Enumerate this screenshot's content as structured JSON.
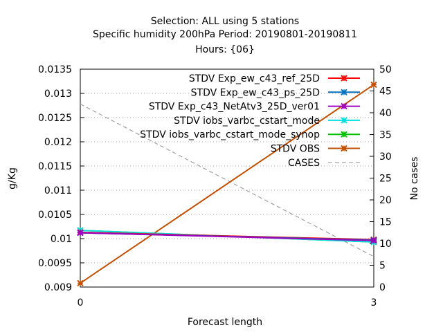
{
  "chart_data": {
    "type": "line",
    "title_lines": [
      "Selection: ALL using     5 stations",
      "Specific humidity 200hPa   Period: 20190801-20190811",
      "Hours: {06}"
    ],
    "xlabel": "Forecast length",
    "ylabel": "g/Kg",
    "y2label": "No cases",
    "x": [
      0,
      3
    ],
    "xlim": [
      0,
      3
    ],
    "ylim": [
      0.009,
      0.0135
    ],
    "y2lim": [
      0,
      50
    ],
    "xticks": [
      "0",
      "3"
    ],
    "yticks": [
      "0.009",
      "0.0095",
      "0.01",
      "0.0105",
      "0.011",
      "0.0115",
      "0.012",
      "0.0125",
      "0.013",
      "0.0135"
    ],
    "y2ticks": [
      "0",
      "5",
      "10",
      "15",
      "20",
      "25",
      "30",
      "35",
      "40",
      "45",
      "50"
    ],
    "grid": true,
    "legend_position": "top-right",
    "series": [
      {
        "name": "STDV Exp_ew_c43_ref_25D",
        "color": "#ff0000",
        "axis": "y",
        "marker": "x",
        "values": [
          0.01013,
          0.00998
        ]
      },
      {
        "name": "STDV Exp_ew_c43_ps_25D",
        "color": "#0072bd",
        "axis": "y",
        "marker": "x",
        "values": [
          0.01012,
          0.00997
        ]
      },
      {
        "name": "STDV Exp_c43_NetAtv3_25D_ver01",
        "color": "#a000c0",
        "axis": "y",
        "marker": "x",
        "values": [
          0.01012,
          0.00996
        ]
      },
      {
        "name": "STDV iobs_varbc_cstart_mode",
        "color": "#00e0e0",
        "axis": "y",
        "marker": "x",
        "values": [
          0.01017,
          0.00993
        ]
      },
      {
        "name": "STDV iobs_varbc_cstart_mode_synop",
        "color": "#00c000",
        "axis": "y",
        "marker": "x",
        "values": [
          0.01017,
          0.00993
        ]
      },
      {
        "name": "STDV OBS",
        "color": "#c05000",
        "axis": "y",
        "marker": "x",
        "values": [
          0.00908,
          0.01318
        ]
      },
      {
        "name": "CASES",
        "color": "#a0a0a0",
        "axis": "y2",
        "marker": "none",
        "dash": "6,4",
        "values": [
          42,
          7
        ]
      }
    ]
  }
}
